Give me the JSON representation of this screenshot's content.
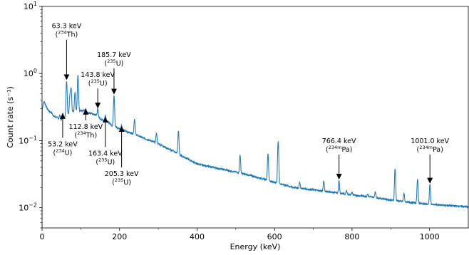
{
  "chart_data": {
    "type": "line",
    "xlabel": "Energy (keV)",
    "ylabel": "Count rate (s⁻¹)",
    "xlim": [
      0,
      1100
    ],
    "ylim": [
      0.005,
      10
    ],
    "yscale": "log",
    "grid": false,
    "x_ticks": [
      0,
      200,
      400,
      600,
      800,
      1000
    ],
    "x_tick_labels": [
      "0",
      "200",
      "400",
      "600",
      "800",
      "1000"
    ],
    "y_ticks": [
      0.01,
      0.1,
      1,
      10
    ],
    "y_tick_labels": [
      {
        "base": "10",
        "exp": "−2"
      },
      {
        "base": "10",
        "exp": "−1"
      },
      {
        "base": "10",
        "exp": "0"
      },
      {
        "base": "10",
        "exp": "1"
      }
    ],
    "series": [
      {
        "color": "#1f77b4",
        "baseline": [
          [
            1,
            0.3
          ],
          [
            3,
            0.36
          ],
          [
            6,
            0.38
          ],
          [
            10,
            0.33
          ],
          [
            15,
            0.29
          ],
          [
            20,
            0.27
          ],
          [
            25,
            0.26
          ],
          [
            30,
            0.23
          ],
          [
            40,
            0.22
          ],
          [
            50,
            0.2
          ],
          [
            60,
            0.23
          ],
          [
            70,
            0.26
          ],
          [
            80,
            0.27
          ],
          [
            90,
            0.27
          ],
          [
            100,
            0.28
          ],
          [
            110,
            0.28
          ],
          [
            120,
            0.26
          ],
          [
            130,
            0.25
          ],
          [
            140,
            0.24
          ],
          [
            150,
            0.21
          ],
          [
            160,
            0.2
          ],
          [
            170,
            0.19
          ],
          [
            180,
            0.17
          ],
          [
            190,
            0.16
          ],
          [
            200,
            0.15
          ],
          [
            220,
            0.135
          ],
          [
            240,
            0.125
          ],
          [
            260,
            0.11
          ],
          [
            280,
            0.1
          ],
          [
            300,
            0.09
          ],
          [
            350,
            0.064
          ],
          [
            400,
            0.045
          ],
          [
            450,
            0.039
          ],
          [
            500,
            0.034
          ],
          [
            550,
            0.029
          ],
          [
            600,
            0.024
          ],
          [
            650,
            0.02
          ],
          [
            700,
            0.0185
          ],
          [
            750,
            0.017
          ],
          [
            800,
            0.0155
          ],
          [
            850,
            0.0145
          ],
          [
            900,
            0.013
          ],
          [
            950,
            0.012
          ],
          [
            1000,
            0.0112
          ],
          [
            1050,
            0.0108
          ],
          [
            1100,
            0.0103
          ]
        ],
        "peaks": [
          [
            46,
            0.24
          ],
          [
            53.2,
            0.26
          ],
          [
            63.3,
            0.77
          ],
          [
            72,
            0.48
          ],
          [
            75,
            0.6
          ],
          [
            85,
            0.52
          ],
          [
            92.6,
            0.95
          ],
          [
            112.8,
            0.3
          ],
          [
            143.8,
            0.3
          ],
          [
            163.4,
            0.24
          ],
          [
            185.7,
            0.47
          ],
          [
            205.3,
            0.17
          ],
          [
            238.6,
            0.21
          ],
          [
            295.2,
            0.13
          ],
          [
            338,
            0.072
          ],
          [
            351.9,
            0.14
          ],
          [
            409,
            0.044
          ],
          [
            462,
            0.038
          ],
          [
            511,
            0.061
          ],
          [
            583,
            0.064
          ],
          [
            609.3,
            0.097
          ],
          [
            665,
            0.024
          ],
          [
            727,
            0.025
          ],
          [
            766.4,
            0.025
          ],
          [
            786,
            0.018
          ],
          [
            800,
            0.017
          ],
          [
            840,
            0.016
          ],
          [
            860,
            0.0175
          ],
          [
            911,
            0.038
          ],
          [
            934,
            0.0165
          ],
          [
            969,
            0.027
          ],
          [
            1001,
            0.0225
          ]
        ]
      }
    ],
    "annotations": [
      {
        "energy": "63.3 keV",
        "sup": "234",
        "nuclide": "Th",
        "x": 63.3,
        "y_tip": 0.82,
        "y_tail": 3.2,
        "text_pos": "above"
      },
      {
        "energy": "185.7 keV",
        "sup": "235",
        "nuclide": "U",
        "x": 185.7,
        "y_tip": 0.5,
        "y_tail": 1.2,
        "text_pos": "above"
      },
      {
        "energy": "143.8 keV",
        "sup": "235",
        "nuclide": "U",
        "x": 143.8,
        "y_tip": 0.31,
        "y_tail": 0.6,
        "text_pos": "above"
      },
      {
        "energy": "112.8 keV",
        "sup": "234",
        "nuclide": "Th",
        "x": 112.8,
        "y_tip": 0.29,
        "y_tail": 0.2,
        "text_pos": "below"
      },
      {
        "energy": "53.2 keV",
        "sup": "234",
        "nuclide": "U",
        "x": 53.2,
        "y_tip": 0.25,
        "y_tail": 0.11,
        "text_pos": "below"
      },
      {
        "energy": "163.4 keV",
        "sup": "235",
        "nuclide": "U",
        "x": 163.4,
        "y_tip": 0.22,
        "y_tail": 0.08,
        "text_pos": "below"
      },
      {
        "energy": "205.3 keV",
        "sup": "235",
        "nuclide": "U",
        "x": 205.3,
        "y_tip": 0.16,
        "y_tail": 0.04,
        "text_pos": "below"
      },
      {
        "energy": "766.4 keV",
        "sup": "234m",
        "nuclide": "Pa",
        "x": 766.4,
        "y_tip": 0.027,
        "y_tail": 0.062,
        "text_pos": "above"
      },
      {
        "energy": "1001.0 keV",
        "sup": "234m",
        "nuclide": "Pa",
        "x": 1001,
        "y_tip": 0.0235,
        "y_tail": 0.062,
        "text_pos": "above"
      }
    ]
  }
}
